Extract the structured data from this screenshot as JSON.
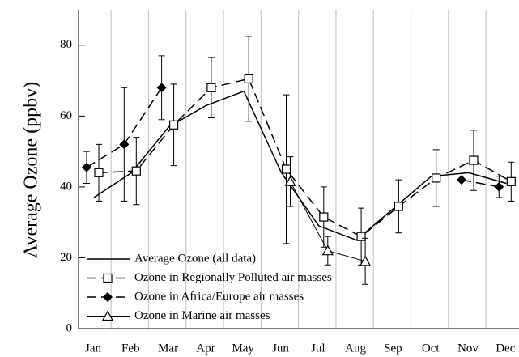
{
  "chart_data": {
    "type": "line",
    "y_label": "Average Ozone (ppbv)",
    "categories": [
      "Jan",
      "Feb",
      "Mar",
      "Apr",
      "May",
      "Jun",
      "Jul",
      "Aug",
      "Sep",
      "Oct",
      "Nov",
      "Dec"
    ],
    "ylim": [
      0,
      90
    ],
    "yticks": [
      0,
      20,
      40,
      60,
      80
    ],
    "grid": "x",
    "legend": "lower left",
    "series": [
      {
        "name": "Average Ozone (all data)",
        "color": "#000000",
        "dash": false,
        "marker": "none",
        "values": [
          37,
          44,
          57,
          63,
          67,
          44,
          29,
          25,
          34,
          43,
          44,
          41
        ]
      },
      {
        "name": "Ozone in Regionally Polluted air masses",
        "color": "#000000",
        "dash": true,
        "marker": "square",
        "values": [
          44,
          44.5,
          57.5,
          68,
          70.5,
          45,
          31.5,
          26,
          34.5,
          42.5,
          47.5,
          41.5
        ],
        "errors": [
          8,
          9.5,
          11.5,
          8.5,
          12,
          21,
          8.5,
          8,
          7.5,
          8,
          8.5,
          5.5
        ]
      },
      {
        "name": "Ozone in Africa/Europe air masses",
        "color": "#000000",
        "dash": true,
        "marker": "diamond",
        "values": [
          45.5,
          52,
          68,
          null,
          null,
          null,
          null,
          null,
          null,
          null,
          42,
          40
        ],
        "errors": [
          4.5,
          16,
          9,
          null,
          null,
          null,
          null,
          null,
          null,
          null,
          null,
          3
        ]
      },
      {
        "name": "Ozone in Marine air masses",
        "color": "#000000",
        "dash": false,
        "marker": "triangle",
        "values": [
          null,
          null,
          null,
          null,
          null,
          41.5,
          22,
          19,
          null,
          null,
          null,
          null
        ],
        "errors": [
          null,
          null,
          null,
          null,
          null,
          7,
          4,
          6.5,
          null,
          null,
          null,
          null
        ]
      }
    ]
  }
}
